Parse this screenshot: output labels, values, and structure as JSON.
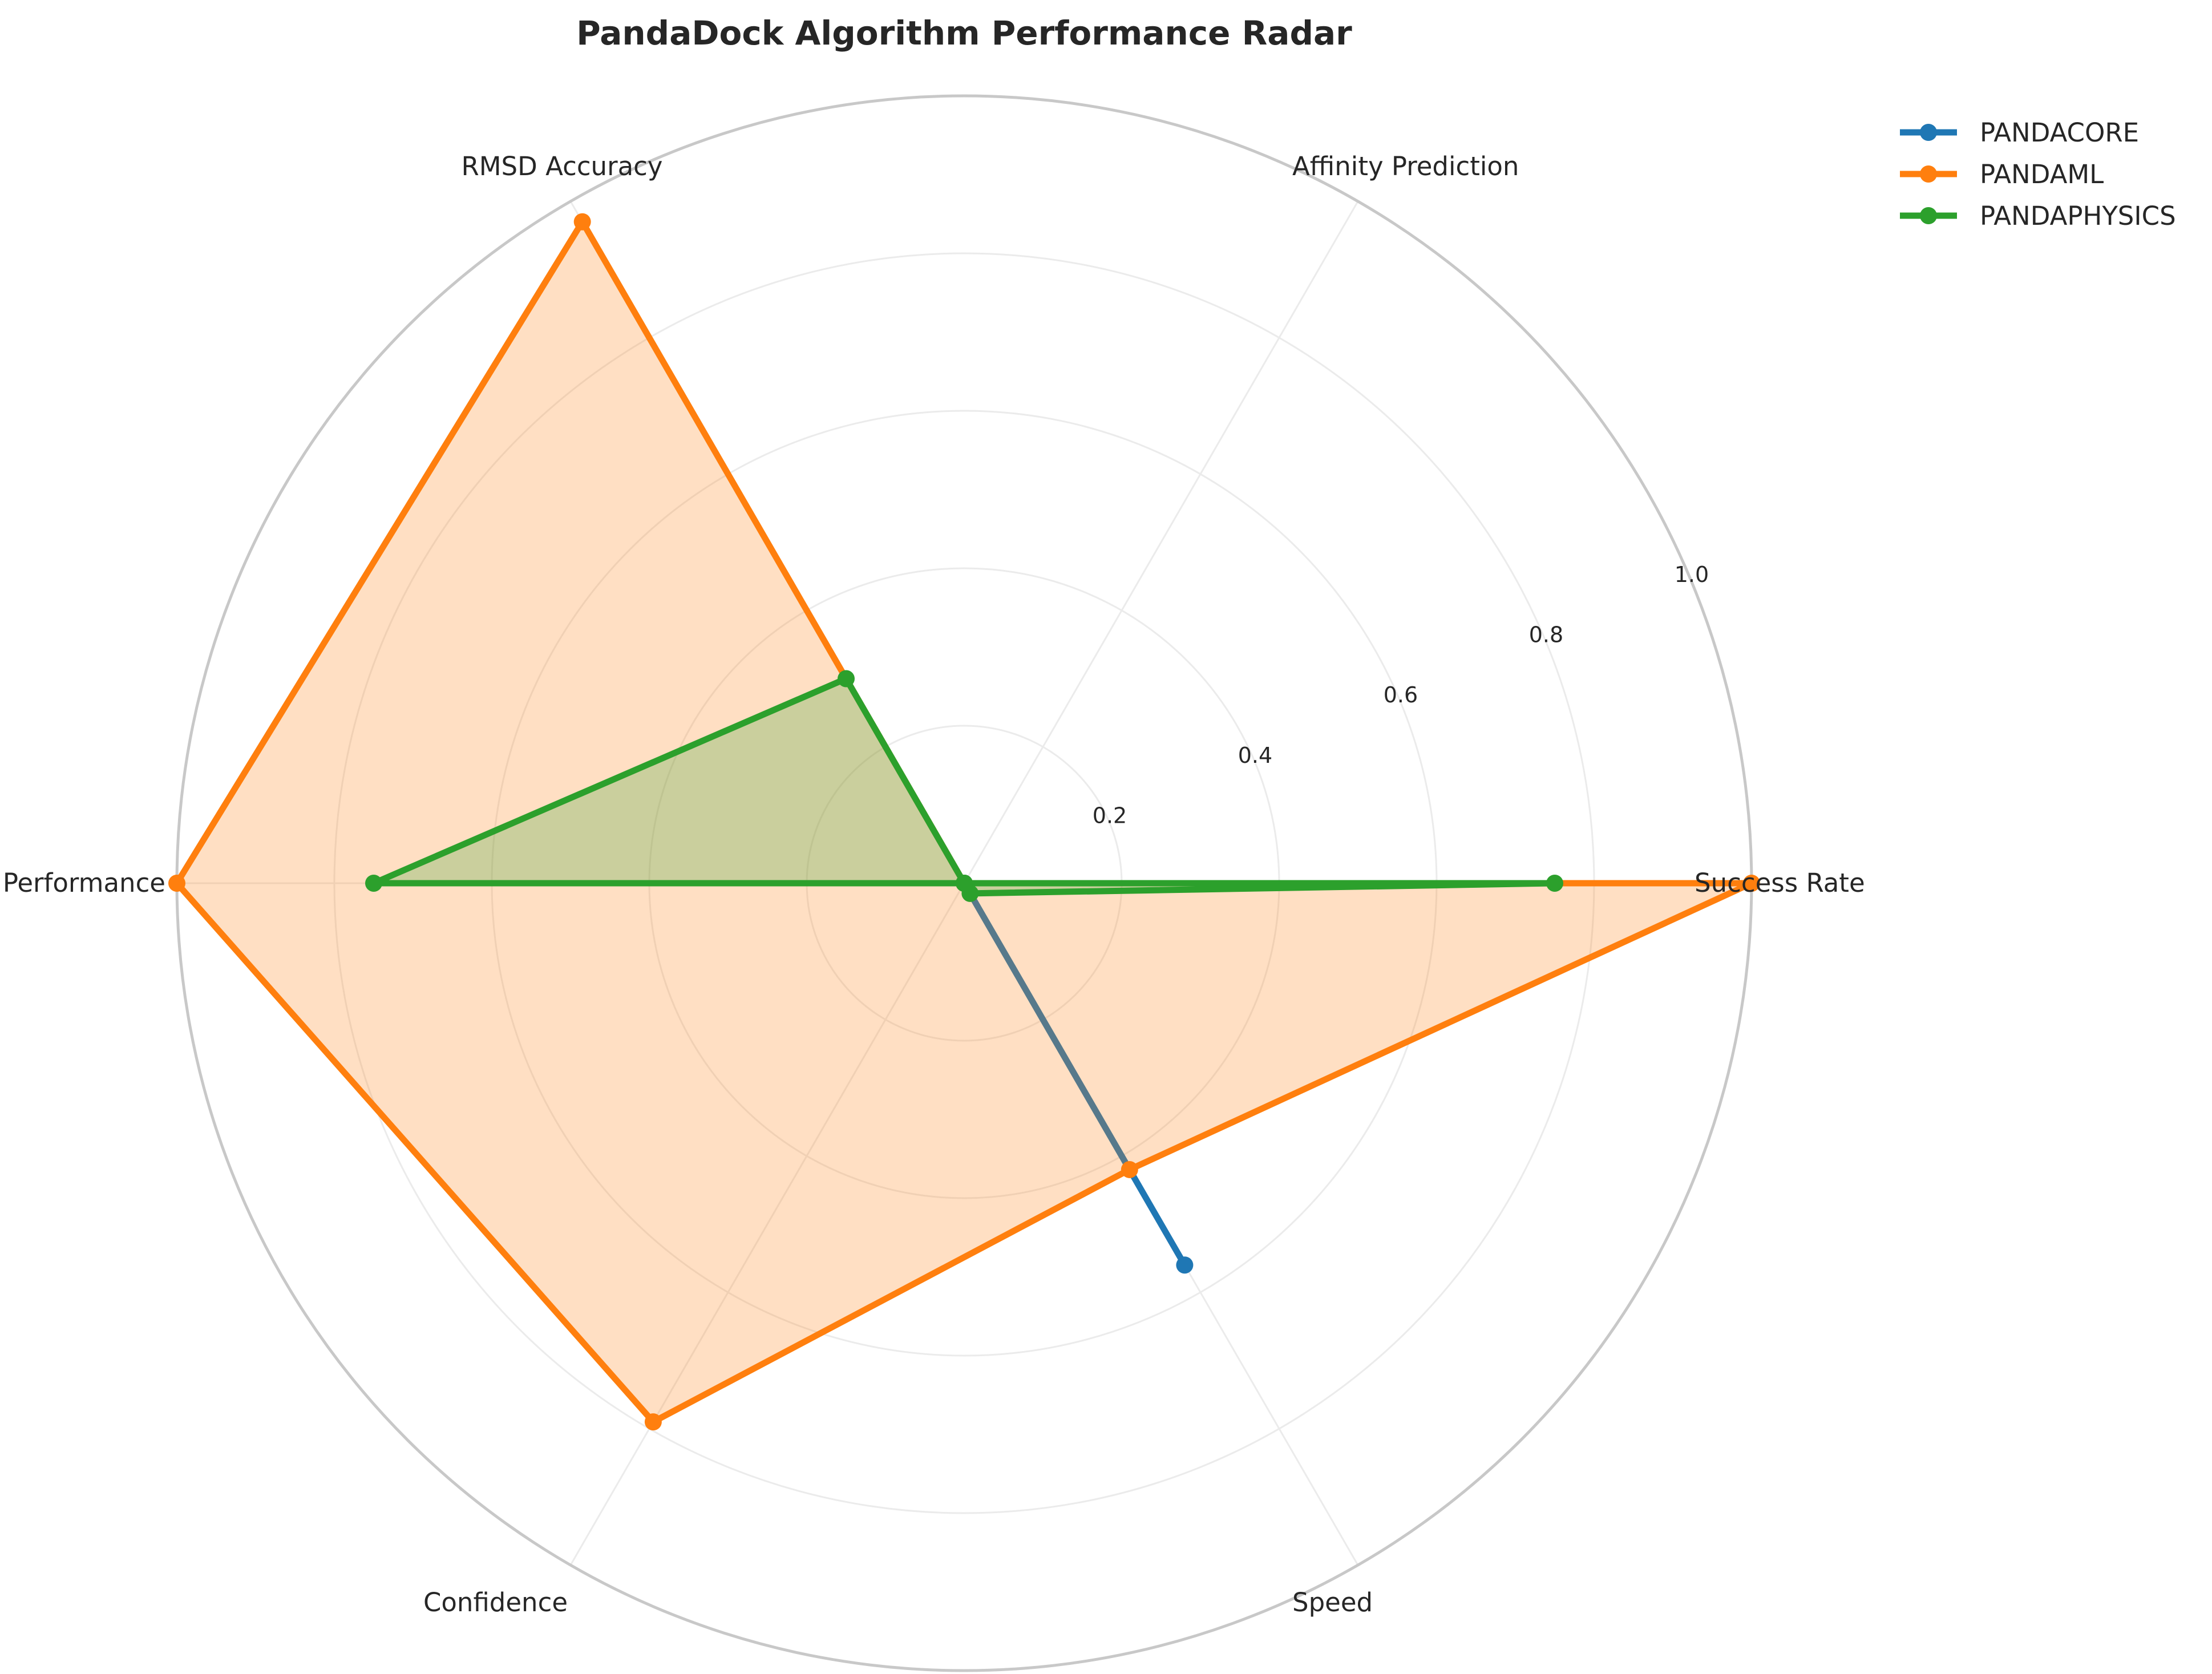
{
  "chart_data": {
    "type": "radar",
    "title": "PandaDock Algorithm Performance Radar",
    "axes": [
      "Success Rate",
      "Affinity Prediction",
      "RMSD Accuracy",
      "Metal Performance",
      "Confidence",
      "Speed"
    ],
    "rlim": [
      0,
      1.0
    ],
    "rticks": [
      "0.2",
      "0.4",
      "0.6",
      "0.8",
      "1.0"
    ],
    "rtick_values": [
      0.2,
      0.4,
      0.6,
      0.8,
      1.0
    ],
    "grid": true,
    "legend_position": "top-right",
    "series": [
      {
        "name": "PANDACORE",
        "color": "#1f77b4",
        "values": [
          0.0,
          0.0,
          0.0,
          0.0,
          0.0,
          0.56
        ],
        "fill": false
      },
      {
        "name": "PANDAML",
        "color": "#ff7f0e",
        "values": [
          1.0,
          0.0,
          0.97,
          1.0,
          0.79,
          0.42
        ],
        "fill": true
      },
      {
        "name": "PANDAPHYSICS",
        "color": "#2ca02c",
        "values": [
          0.75,
          0.0,
          0.3,
          0.75,
          0.0,
          0.015
        ],
        "fill": true
      }
    ]
  }
}
